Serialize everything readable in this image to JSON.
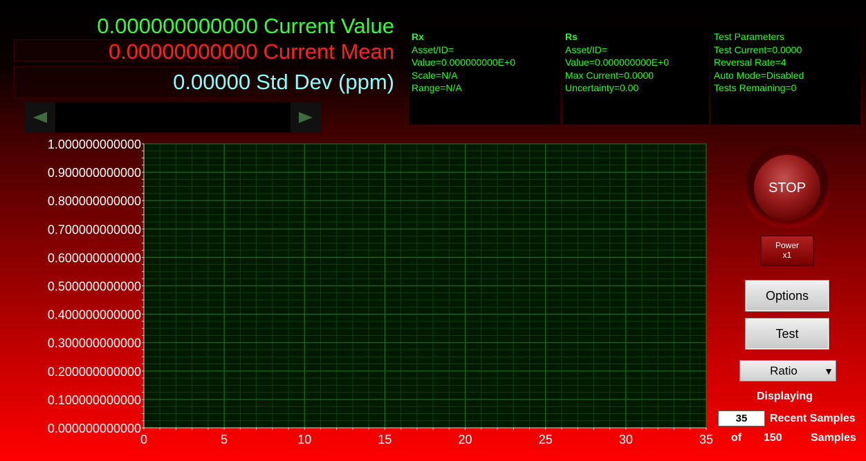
{
  "readouts": {
    "current_value": {
      "value": "0.000000000000",
      "label": "Current Value",
      "color": "#33ff33"
    },
    "current_mean": {
      "value": "0.00000000000",
      "label": "Current Mean",
      "color": "#ff2020"
    },
    "std_dev": {
      "value": "0.00000",
      "label": "Std Dev (ppm)",
      "color": "#88ffff"
    }
  },
  "rx": {
    "title": "Rx",
    "lines": [
      "Asset/ID=",
      "Value=0.000000000E+0",
      "Scale=N/A",
      "Range=N/A"
    ]
  },
  "rs": {
    "title": "Rs",
    "lines": [
      "Asset/ID=",
      "Value=0.000000000E+0",
      "Max Current=0.0000",
      "Uncertainty=0.00"
    ]
  },
  "test_params": {
    "title": "Test Parameters",
    "lines": [
      "Test Current=0.0000",
      "Reversal Rate=4",
      "Auto Mode=Disabled",
      "Tests Remaining=0"
    ]
  },
  "scroll": {
    "left_icon": "triangle-left-icon",
    "right_icon": "triangle-right-icon"
  },
  "chart_data": {
    "type": "line",
    "x_ticks": [
      0,
      5,
      10,
      15,
      20,
      25,
      30,
      35
    ],
    "y_ticks": [
      "0.000000000000",
      "0.100000000000",
      "0.200000000000",
      "0.300000000000",
      "0.400000000000",
      "0.500000000000",
      "0.600000000000",
      "0.700000000000",
      "0.800000000000",
      "0.900000000000",
      "1.000000000000"
    ],
    "xlim": [
      0,
      35
    ],
    "ylim": [
      0,
      1
    ],
    "grid": true,
    "series": [],
    "plot_bg": "#001a00",
    "grid_color": "#1e6a1e",
    "axis_label_color": "#ffffff"
  },
  "controls": {
    "stop_label": "STOP",
    "power_line1": "Power",
    "power_line2": "x1",
    "options_label": "Options",
    "test_label": "Test",
    "ratio_value": "Ratio",
    "displaying_label": "Displaying",
    "recent_count": "35",
    "recent_label": "Recent Samples",
    "of_label": "of",
    "total_count": "150",
    "samples_label": "Samples"
  }
}
